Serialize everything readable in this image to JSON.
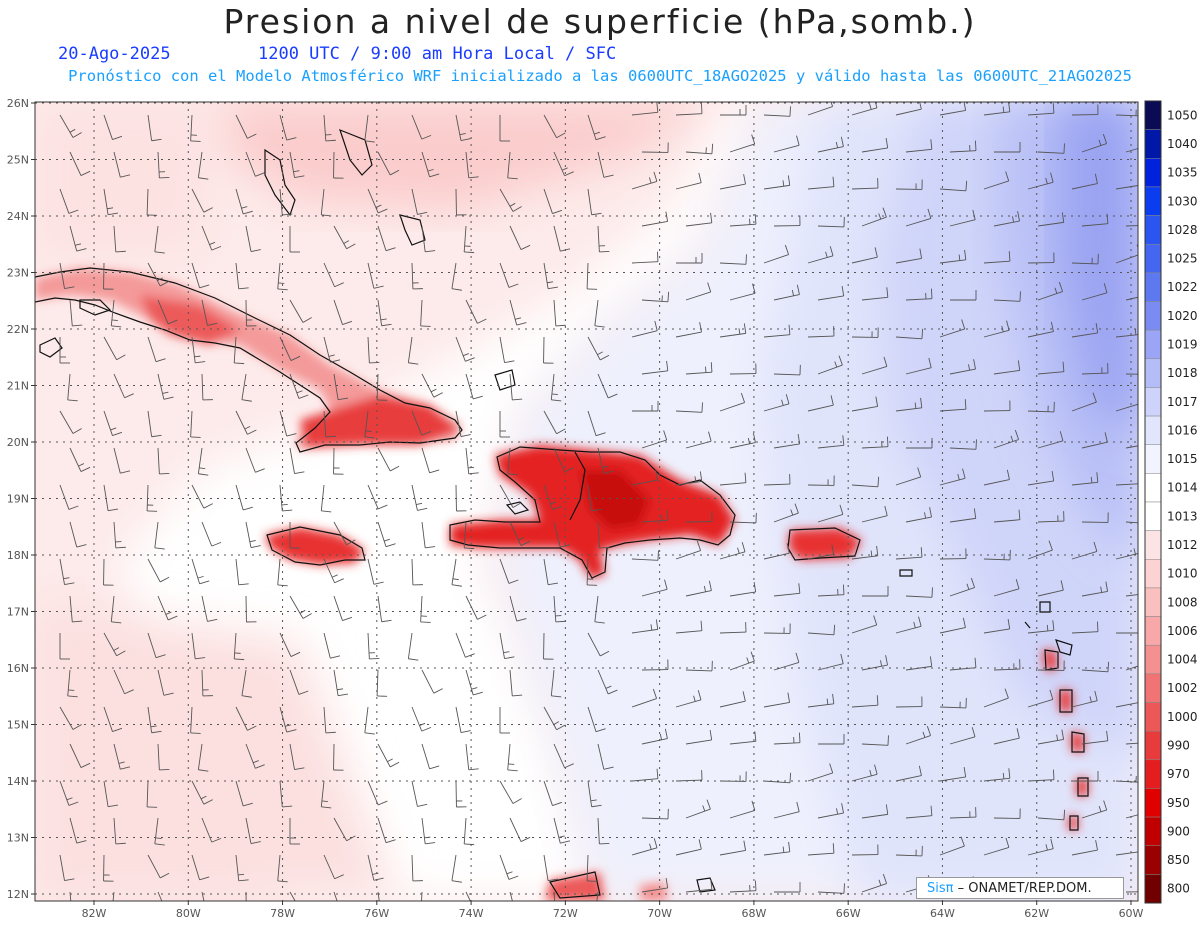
{
  "header": {
    "title": "Presion a nivel de superficie (hPa,somb.)",
    "date": "20-Ago-2025",
    "time_info": "1200 UTC / 9:00 am Hora Local / SFC",
    "forecast_info": "Pronóstico con el Modelo Atmosférico WRF inicializado a las 0600UTC_18AGO2025 y válido hasta las  0600UTC_21AGO2025"
  },
  "map": {
    "lat_labels": [
      "26N",
      "25N",
      "24N",
      "23N",
      "22N",
      "21N",
      "20N",
      "19N",
      "18N",
      "17N",
      "16N",
      "15N",
      "14N",
      "13N",
      "12N"
    ],
    "lon_labels": [
      "82W",
      "80W",
      "78W",
      "76W",
      "74W",
      "72W",
      "70W",
      "68W",
      "66W",
      "64W",
      "62W",
      "60W"
    ]
  },
  "colorbar": {
    "levels": [
      "1050",
      "1040",
      "1035",
      "1030",
      "1028",
      "1025",
      "1022",
      "1020",
      "1019",
      "1018",
      "1017",
      "1016",
      "1015",
      "1014",
      "1013",
      "1012",
      "1010",
      "1008",
      "1006",
      "1004",
      "1002",
      "1000",
      "990",
      "970",
      "950",
      "900",
      "850",
      "800"
    ],
    "colors": [
      "#0a0a55",
      "#0018a8",
      "#0022dd",
      "#0a3cf0",
      "#2a55f0",
      "#4466f0",
      "#5e78f0",
      "#7a8cf2",
      "#9aa6f5",
      "#b4bdf7",
      "#cdd3fa",
      "#e2e6fc",
      "#f1f3fe",
      "#ffffff",
      "#ffffff",
      "#fde4e4",
      "#fcd2d2",
      "#fabfbf",
      "#f8a8a8",
      "#f49090",
      "#f07474",
      "#ec5858",
      "#e83c3c",
      "#e41e1e",
      "#e00000",
      "#c00000",
      "#9a0000",
      "#700000"
    ]
  },
  "credit": {
    "brand": "Sisπ",
    "text": " – ONAMET/REP.DOM."
  }
}
